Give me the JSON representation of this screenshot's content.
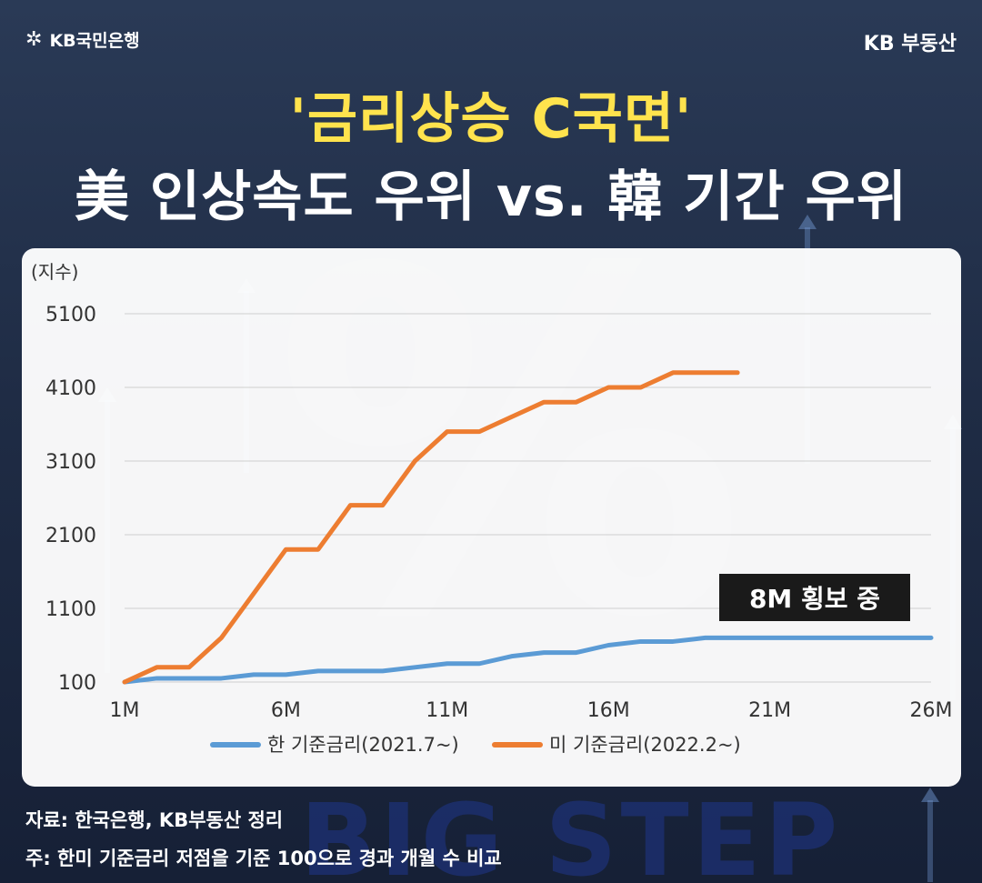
{
  "header": {
    "logo_left": "KB국민은행",
    "logo_left_icon": "kb-star-icon",
    "logo_right": "KB 부동산"
  },
  "title": {
    "line1": "'금리상승 C국면'",
    "line2": "美 인상속도 우위 vs. 韓 기간 우위"
  },
  "background_text": "BIG STEP",
  "colors": {
    "accent_yellow": "#ffe34d",
    "series_korea": "#5b9bd5",
    "series_us": "#ed7d31",
    "badge_bg": "#1a1a1a"
  },
  "chart_data": {
    "type": "line",
    "ylabel": "(지수)",
    "xlabel": "",
    "ylim": [
      100,
      5100
    ],
    "yticks": [
      100,
      1100,
      2100,
      3100,
      4100,
      5100
    ],
    "xlim": [
      1,
      26
    ],
    "xticks": [
      "1M",
      "6M",
      "11M",
      "16M",
      "21M",
      "26M"
    ],
    "xtick_values": [
      1,
      6,
      11,
      16,
      21,
      26
    ],
    "grid": true,
    "legend_position": "bottom",
    "annotation": "8M 횡보 중",
    "series": [
      {
        "name": "한 기준금리(2021.7~)",
        "color": "#5b9bd5",
        "x": [
          1,
          2,
          3,
          4,
          5,
          6,
          7,
          8,
          9,
          10,
          11,
          12,
          13,
          14,
          15,
          16,
          17,
          18,
          19,
          20,
          21,
          22,
          23,
          24,
          25,
          26
        ],
        "y": [
          100,
          150,
          150,
          150,
          200,
          200,
          250,
          250,
          250,
          300,
          350,
          350,
          450,
          500,
          500,
          600,
          650,
          650,
          700,
          700,
          700,
          700,
          700,
          700,
          700,
          700
        ]
      },
      {
        "name": "미 기준금리(2022.2~)",
        "color": "#ed7d31",
        "x": [
          1,
          2,
          3,
          4,
          5,
          6,
          7,
          8,
          9,
          10,
          11,
          12,
          13,
          14,
          15,
          16,
          17,
          18,
          19,
          20
        ],
        "y": [
          100,
          300,
          300,
          700,
          1300,
          1900,
          1900,
          2500,
          2500,
          3100,
          3500,
          3500,
          3700,
          3900,
          3900,
          4100,
          4100,
          4300,
          4300,
          4300
        ]
      }
    ]
  },
  "footer": {
    "source": "자료: 한국은행, KB부동산 정리",
    "note": "주: 한미 기준금리 저점을 기준 100으로 경과 개월 수 비교"
  }
}
